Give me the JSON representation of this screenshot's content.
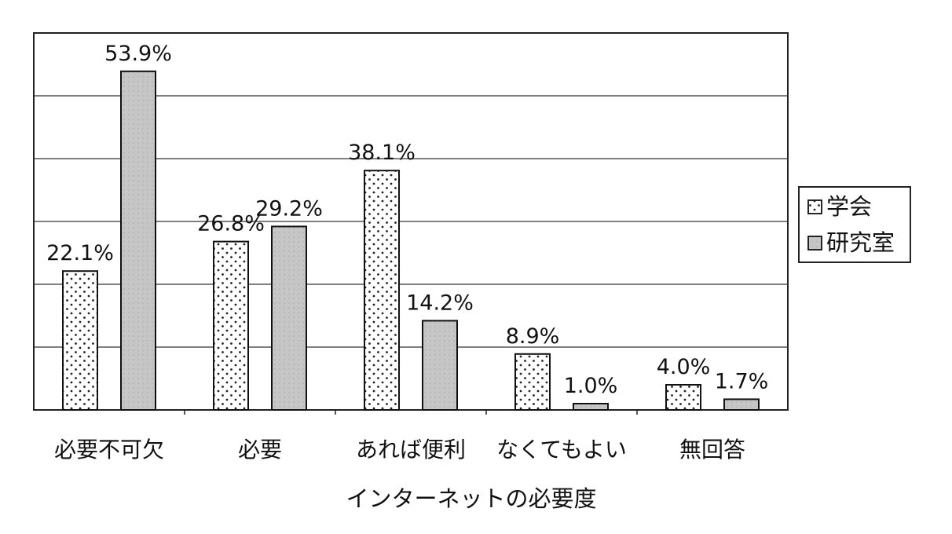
{
  "chart_data": {
    "type": "bar",
    "title": "",
    "xlabel": "インターネットの必要度",
    "ylabel": "",
    "categories": [
      "必要不可欠",
      "必要",
      "あれば便利",
      "なくてもよい",
      "無回答"
    ],
    "series": [
      {
        "name": "学会",
        "values": [
          22.1,
          26.8,
          38.1,
          8.9,
          4.0
        ],
        "labels": [
          "22.1%",
          "26.8%",
          "38.1%",
          "8.9%",
          "4.0%"
        ],
        "pattern": "dotted",
        "color": "#ffffff"
      },
      {
        "name": "研究室",
        "values": [
          53.9,
          29.2,
          14.2,
          1.0,
          1.7
        ],
        "labels": [
          "53.9%",
          "29.2%",
          "14.2%",
          "1.0%",
          "1.7%"
        ],
        "pattern": "gray",
        "color": "#c8c8c8"
      }
    ],
    "ylim": [
      0,
      60
    ],
    "grid": true,
    "legend_position": "right"
  }
}
